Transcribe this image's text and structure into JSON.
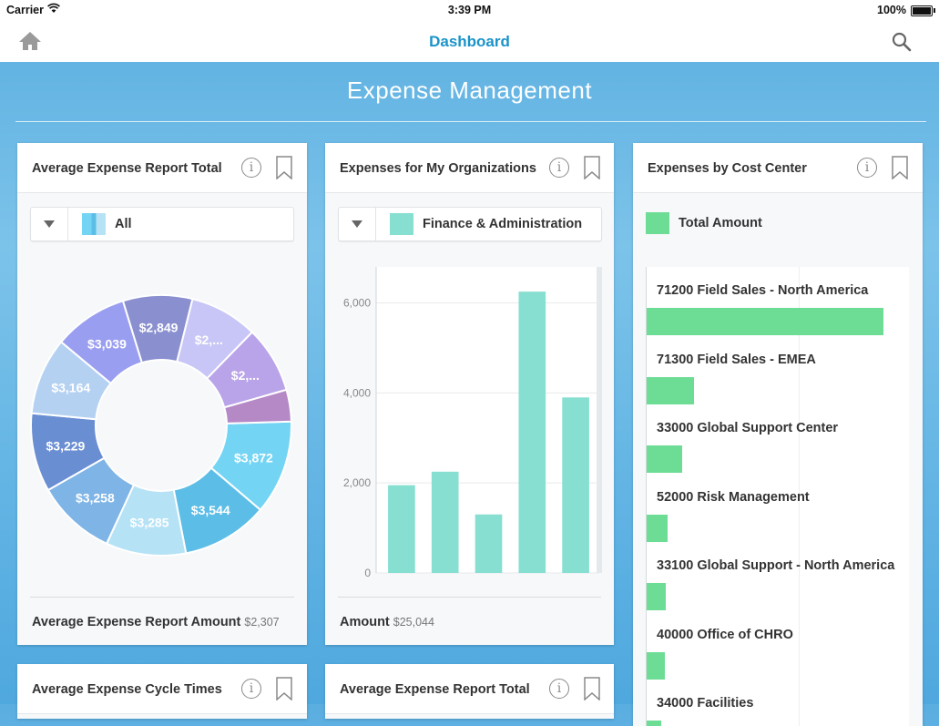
{
  "status_bar": {
    "carrier": "Carrier",
    "time": "3:39 PM",
    "battery": "100%"
  },
  "nav": {
    "title": "Dashboard",
    "home_icon": "home-icon",
    "search_icon": "search-icon"
  },
  "page": {
    "title": "Expense Management"
  },
  "cards": {
    "avg_report_total": {
      "title": "Average Expense Report Total",
      "picker_label": "All",
      "footer_label": "Average Expense Report Amount",
      "footer_value": "$2,307"
    },
    "my_orgs": {
      "title": "Expenses for My Organizations",
      "picker_label": "Finance & Administration",
      "footer_label": "Amount",
      "footer_value": "$25,044"
    },
    "cost_center": {
      "title": "Expenses by Cost Center",
      "legend_label": "Total Amount"
    },
    "cycle_times": {
      "title": "Average Expense Cycle Times"
    },
    "avg_report_total_2": {
      "title": "Average Expense Report Total"
    }
  },
  "colors": {
    "accent": "#1a93c9",
    "bar_teal": "#86dfd0",
    "bar_green": "#6ddc95"
  },
  "chart_data": [
    {
      "type": "pie",
      "donut": true,
      "slices": [
        {
          "label": "$3,872",
          "value": 3872,
          "color": "#74d4f4"
        },
        {
          "label": "$3,544",
          "value": 3544,
          "color": "#5cbde6"
        },
        {
          "label": "$3,285",
          "value": 3285,
          "color": "#b6e2f6"
        },
        {
          "label": "$3,258",
          "value": 3258,
          "color": "#7eb4e6"
        },
        {
          "label": "$3,229",
          "value": 3229,
          "color": "#6a8ed2"
        },
        {
          "label": "$3,164",
          "value": 3164,
          "color": "#b5d1f2"
        },
        {
          "label": "$3,039",
          "value": 3039,
          "color": "#9a9ef0"
        },
        {
          "label": "$2,849",
          "value": 2849,
          "color": "#8a8fd0"
        },
        {
          "label": "$2,...",
          "value": 2790,
          "color": "#c8c6f6"
        },
        {
          "label": "$2,...",
          "value": 2740,
          "color": "#b9a4ea"
        },
        {
          "label": "",
          "value": 1300,
          "color": "#b588c6"
        }
      ]
    },
    {
      "type": "bar",
      "categories": [
        "",
        "",
        "",
        "",
        ""
      ],
      "values": [
        1950,
        2250,
        1300,
        6250,
        3900
      ],
      "ylim": [
        0,
        6800
      ],
      "yticks": [
        0,
        2000,
        4000,
        6000
      ],
      "ytick_labels": [
        "0",
        "2,000",
        "4,000",
        "6,000"
      ],
      "grid": true
    },
    {
      "type": "bar",
      "orientation": "horizontal",
      "categories": [
        "71200 Field Sales - North America",
        "71300 Field Sales - EMEA",
        "33000 Global Support Center",
        "52000 Risk Management",
        "33100 Global Support - North America",
        "40000 Office of CHRO",
        "34000 Facilities"
      ],
      "values": [
        100,
        20,
        15,
        9,
        8,
        7.5,
        6
      ],
      "xlim": [
        0,
        110
      ]
    }
  ]
}
